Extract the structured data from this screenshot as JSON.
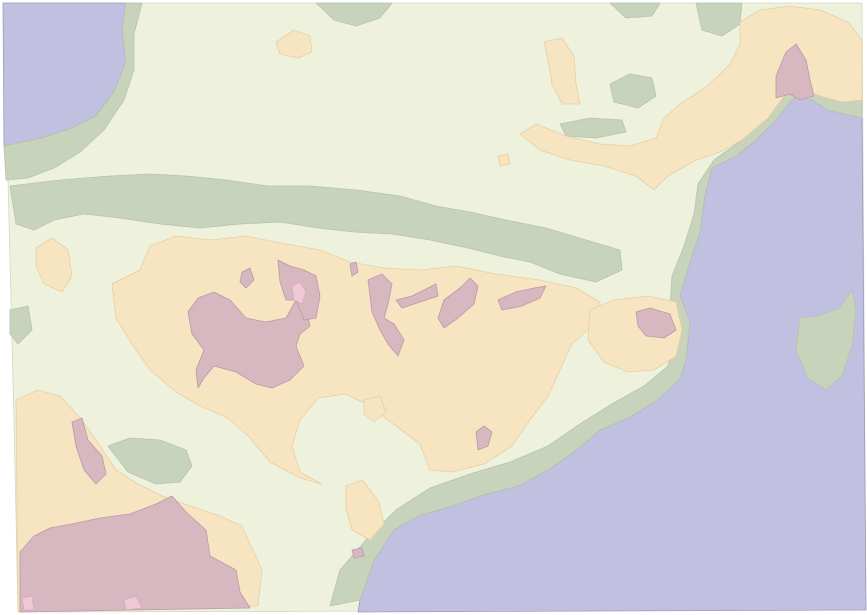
{
  "map": {
    "kind": "elevation-relief",
    "labels": [],
    "colors": {
      "sea": "#c1c0e0",
      "lowland": "#c8d3bb",
      "plain": "#eef2dc",
      "highland": "#f7e4c0",
      "mountain": "#d7b8c0",
      "peak": "#f1c8d8",
      "border": "#ffffff"
    },
    "zones": [
      "sea",
      "lowland",
      "plain",
      "highland",
      "mountain",
      "peak"
    ]
  }
}
